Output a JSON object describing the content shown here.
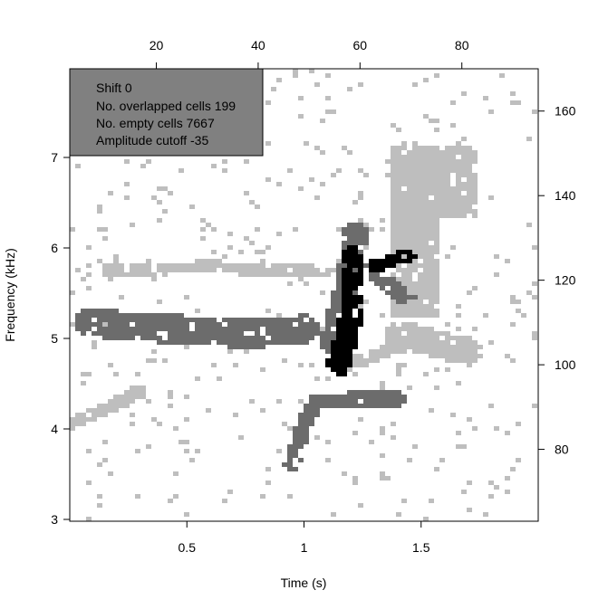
{
  "chart_data": {
    "type": "heatmap",
    "xlabel": "Time (s)",
    "ylabel": "Frequency (kHz)",
    "xlim": [
      0,
      2.0
    ],
    "ylim": [
      2.98,
      7.98
    ],
    "x_ticks": [
      0.5,
      1,
      1.5
    ],
    "x_tick_labels": [
      "0.5",
      "1",
      "1.5"
    ],
    "y_ticks": [
      3,
      4,
      5,
      6,
      7
    ],
    "y_tick_labels": [
      "3",
      "4",
      "5",
      "6",
      "7"
    ],
    "top_axis": {
      "lim": [
        3,
        95
      ],
      "ticks": [
        20,
        40,
        60,
        80
      ],
      "tick_labels": [
        "20",
        "40",
        "60",
        "80"
      ]
    },
    "right_axis": {
      "lim": [
        63,
        170
      ],
      "ticks": [
        80,
        100,
        120,
        140,
        160
      ],
      "tick_labels": [
        "80",
        "100",
        "120",
        "140",
        "160"
      ]
    },
    "legend": {
      "placement": "top-left",
      "lines": [
        "Shift 0",
        "No. overlapped cells 199",
        "No. empty cells 7667",
        "Amplitude cutoff -35"
      ]
    },
    "shift": 0,
    "overlapped_cells": 199,
    "empty_cells": 7667,
    "amplitude_cutoff": -35,
    "grid": false,
    "layers": [
      {
        "name": "template_1",
        "color": "#bebebe"
      },
      {
        "name": "template_2",
        "color": "#6c6c6c"
      },
      {
        "name": "overlap",
        "color": "#000000"
      }
    ],
    "regions": [
      {
        "layer": "template_1",
        "shape": "band",
        "path": [
          [
            0.0,
            4.05
          ],
          [
            0.18,
            4.25
          ],
          [
            0.3,
            4.42
          ]
        ],
        "width": 0.15
      },
      {
        "layer": "template_1",
        "shape": "band",
        "path": [
          [
            0.16,
            5.76
          ],
          [
            0.6,
            5.79
          ],
          [
            1.0,
            5.74
          ],
          [
            1.2,
            5.72
          ]
        ],
        "width": 0.14
      },
      {
        "layer": "template_1",
        "shape": "rect",
        "x": [
          1.36,
          1.74
        ],
        "y": [
          6.35,
          7.15
        ]
      },
      {
        "layer": "template_1",
        "shape": "rect",
        "x": [
          1.36,
          1.57
        ],
        "y": [
          5.25,
          6.55
        ]
      },
      {
        "layer": "template_1",
        "shape": "band",
        "path": [
          [
            1.4,
            5.05
          ],
          [
            1.7,
            4.85
          ]
        ],
        "width": 0.3
      },
      {
        "layer": "template_1",
        "shape": "band",
        "path": [
          [
            1.2,
            4.72
          ],
          [
            1.42,
            4.92
          ]
        ],
        "width": 0.14
      },
      {
        "layer": "template_2",
        "shape": "band",
        "path": [
          [
            0.08,
            5.17
          ],
          [
            0.35,
            5.12
          ],
          [
            0.75,
            5.05
          ],
          [
            1.0,
            5.1
          ]
        ],
        "width": 0.32
      },
      {
        "layer": "template_2",
        "shape": "band",
        "path": [
          [
            0.95,
            3.62
          ],
          [
            1.0,
            4.05
          ],
          [
            1.05,
            4.3
          ],
          [
            1.4,
            4.34
          ]
        ],
        "width": 0.18
      },
      {
        "layer": "template_2",
        "shape": "band",
        "path": [
          [
            1.12,
            4.95
          ],
          [
            1.19,
            5.6
          ],
          [
            1.22,
            6.15
          ]
        ],
        "width": 0.28
      },
      {
        "layer": "template_2",
        "shape": "band",
        "path": [
          [
            1.24,
            5.85
          ],
          [
            1.34,
            5.62
          ],
          [
            1.44,
            5.45
          ]
        ],
        "width": 0.18
      },
      {
        "layer": "overlap",
        "shape": "band",
        "path": [
          [
            1.15,
            4.72
          ],
          [
            1.2,
            5.2
          ],
          [
            1.2,
            5.9
          ]
        ],
        "width": 0.26
      },
      {
        "layer": "overlap",
        "shape": "band",
        "path": [
          [
            1.3,
            5.8
          ],
          [
            1.45,
            5.92
          ]
        ],
        "width": 0.14
      }
    ]
  }
}
